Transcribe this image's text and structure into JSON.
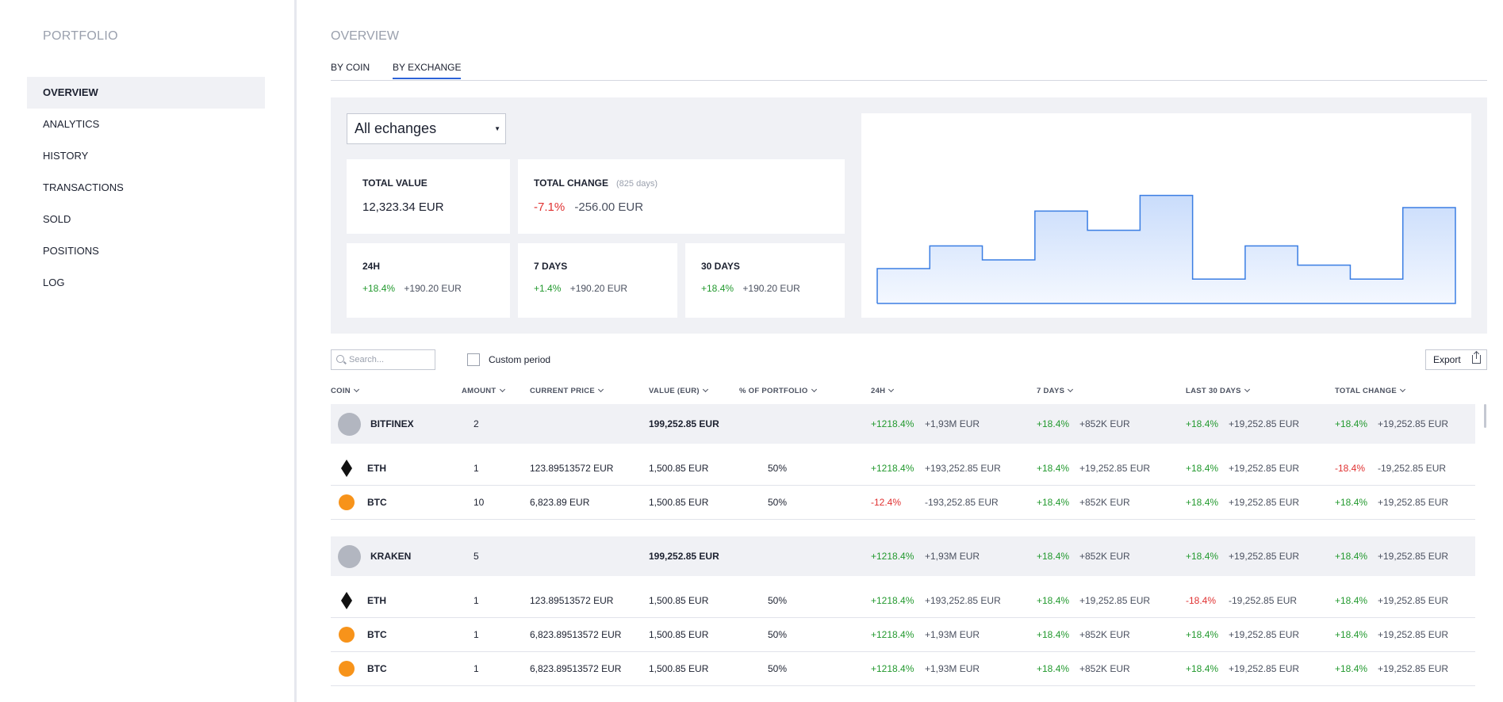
{
  "sidebar": {
    "brand": "PORTFOLIO",
    "items": [
      {
        "label": "OVERVIEW",
        "active": true
      },
      {
        "label": "ANALYTICS"
      },
      {
        "label": "HISTORY"
      },
      {
        "label": "TRANSACTIONS"
      },
      {
        "label": "SOLD"
      },
      {
        "label": "POSITIONS"
      },
      {
        "label": "LOG"
      }
    ]
  },
  "main": {
    "title": "OVERVIEW",
    "tabs": [
      {
        "label": "BY COIN"
      },
      {
        "label": "BY EXCHANGE",
        "active": true
      }
    ]
  },
  "summary": {
    "exchange_select": "All echanges",
    "total_value": {
      "label": "TOTAL VALUE",
      "value": "12,323.34 EUR"
    },
    "total_change": {
      "label": "TOTAL CHANGE",
      "period": "(825 days)",
      "pct": "-7.1%",
      "amount": "-256.00 EUR"
    },
    "d24h": {
      "label": "24H",
      "pct": "+18.4%",
      "amount": "+190.20 EUR"
    },
    "d7": {
      "label": "7 DAYS",
      "pct": "+1.4%",
      "amount": "+190.20 EUR"
    },
    "d30": {
      "label": "30 DAYS",
      "pct": "+18.4%",
      "amount": "+190.20 EUR"
    }
  },
  "chart_data": {
    "type": "area",
    "step": true,
    "values": [
      0.2,
      0.33,
      0.25,
      0.53,
      0.42,
      0.62,
      0.14,
      0.33,
      0.22,
      0.14,
      0.55
    ],
    "ylim": [
      0,
      1
    ],
    "grid": false,
    "colors": {
      "line": "#3b7ee3",
      "fill_top": "#c9dcfb",
      "fill_bottom": "#f4f8ff"
    }
  },
  "toolbar": {
    "search_placeholder": "Search...",
    "custom_period_label": "Custom period",
    "export_label": "Export"
  },
  "table": {
    "columns": [
      "COIN",
      "AMOUNT",
      "CURRENT PRICE",
      "VALUE (EUR)",
      "% OF PORTFOLIO",
      "24H",
      "7 DAYS",
      "LAST 30 DAYS",
      "TOTAL CHANGE"
    ],
    "groups": [
      {
        "name": "BITFINEX",
        "amount": "2",
        "value": "199,252.85 EUR",
        "d24": {
          "pct": "+1218.4%",
          "amt": "+1,93M EUR"
        },
        "d7": {
          "pct": "+18.4%",
          "amt": "+852K EUR"
        },
        "d30": {
          "pct": "+18.4%",
          "amt": "+19,252.85 EUR"
        },
        "total": {
          "pct": "+18.4%",
          "amt": "+19,252.85 EUR"
        },
        "rows": [
          {
            "coin": "ETH",
            "icon": "eth",
            "amount": "1",
            "price": "123.89513572 EUR",
            "value": "1,500.85 EUR",
            "portfolio": "50%",
            "d24": {
              "pct": "+1218.4%",
              "amt": "+193,252.85 EUR"
            },
            "d7": {
              "pct": "+18.4%",
              "amt": "+19,252.85 EUR"
            },
            "d30": {
              "pct": "+18.4%",
              "amt": "+19,252.85 EUR"
            },
            "total": {
              "pct": "-18.4%",
              "amt": "-19,252.85 EUR"
            }
          },
          {
            "coin": "BTC",
            "icon": "btc",
            "amount": "10",
            "price": "6,823.89 EUR",
            "value": "1,500.85 EUR",
            "portfolio": "50%",
            "d24": {
              "pct": "-12.4%",
              "amt": "-193,252.85 EUR"
            },
            "d7": {
              "pct": "+18.4%",
              "amt": "+852K EUR"
            },
            "d30": {
              "pct": "+18.4%",
              "amt": "+19,252.85 EUR"
            },
            "total": {
              "pct": "+18.4%",
              "amt": "+19,252.85 EUR"
            }
          }
        ]
      },
      {
        "name": "KRAKEN",
        "amount": "5",
        "value": "199,252.85 EUR",
        "d24": {
          "pct": "+1218.4%",
          "amt": "+1,93M EUR"
        },
        "d7": {
          "pct": "+18.4%",
          "amt": "+852K EUR"
        },
        "d30": {
          "pct": "+18.4%",
          "amt": "+19,252.85 EUR"
        },
        "total": {
          "pct": "+18.4%",
          "amt": "+19,252.85 EUR"
        },
        "rows": [
          {
            "coin": "ETH",
            "icon": "eth",
            "amount": "1",
            "price": "123.89513572 EUR",
            "value": "1,500.85 EUR",
            "portfolio": "50%",
            "d24": {
              "pct": "+1218.4%",
              "amt": "+193,252.85 EUR"
            },
            "d7": {
              "pct": "+18.4%",
              "amt": "+19,252.85 EUR"
            },
            "d30": {
              "pct": "-18.4%",
              "amt": "-19,252.85 EUR"
            },
            "total": {
              "pct": "+18.4%",
              "amt": "+19,252.85 EUR"
            }
          },
          {
            "coin": "BTC",
            "icon": "btc",
            "amount": "1",
            "price": "6,823.89513572 EUR",
            "value": "1,500.85 EUR",
            "portfolio": "50%",
            "d24": {
              "pct": "+1218.4%",
              "amt": "+1,93M EUR"
            },
            "d7": {
              "pct": "+18.4%",
              "amt": "+852K EUR"
            },
            "d30": {
              "pct": "+18.4%",
              "amt": "+19,252.85 EUR"
            },
            "total": {
              "pct": "+18.4%",
              "amt": "+19,252.85 EUR"
            }
          },
          {
            "coin": "BTC",
            "icon": "btc",
            "amount": "1",
            "price": "6,823.89513572 EUR",
            "value": "1,500.85 EUR",
            "portfolio": "50%",
            "d24": {
              "pct": "+1218.4%",
              "amt": "+1,93M EUR"
            },
            "d7": {
              "pct": "+18.4%",
              "amt": "+852K EUR"
            },
            "d30": {
              "pct": "+18.4%",
              "amt": "+19,252.85 EUR"
            },
            "total": {
              "pct": "+18.4%",
              "amt": "+19,252.85 EUR"
            }
          }
        ]
      }
    ]
  },
  "colors": {
    "positive": "#22992e",
    "negative": "#e03131",
    "accent": "#2d63d8",
    "btc": "#f7931a"
  }
}
